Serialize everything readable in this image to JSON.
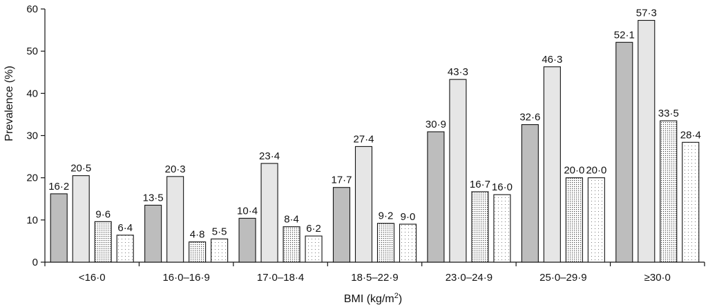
{
  "chart_data": {
    "type": "bar",
    "title": "",
    "xlabel": "BMI (kg/m",
    "xlabel_sup": "2",
    "xlabel_close": ")",
    "ylabel": "Prevalence (%)",
    "ylim": [
      0,
      60
    ],
    "yticks": [
      "0",
      "10",
      "20",
      "30",
      "40",
      "50",
      "60"
    ],
    "grid": false,
    "legend": "none",
    "categories": [
      "<16·0",
      "16·0–16·9",
      "17·0–18·4",
      "18·5–22·9",
      "23·0–24·9",
      "25·0–29·9",
      "≥30·0"
    ],
    "series": [
      {
        "values": [
          16.2,
          13.5,
          10.4,
          17.7,
          30.9,
          32.6,
          52.1
        ],
        "labels": [
          "16·2",
          "13·5",
          "10·4",
          "17·7",
          "30·9",
          "32·6",
          "52·1"
        ],
        "fill": "#bdbdbd",
        "pattern": "solid"
      },
      {
        "values": [
          20.5,
          20.3,
          23.4,
          27.4,
          43.3,
          46.3,
          57.3
        ],
        "labels": [
          "20·5",
          "20·3",
          "23·4",
          "27·4",
          "43·3",
          "46·3",
          "57·3"
        ],
        "fill": "#e6e6e6",
        "pattern": "solid"
      },
      {
        "values": [
          9.6,
          4.8,
          8.4,
          9.2,
          16.7,
          20.0,
          33.5
        ],
        "labels": [
          "9·6",
          "4·8",
          "8·4",
          "9·2",
          "16·7",
          "20·0",
          "33·5"
        ],
        "fill": "#ffffff",
        "pattern": "dense-dots"
      },
      {
        "values": [
          6.4,
          5.5,
          6.2,
          9.0,
          16.0,
          20.0,
          28.4
        ],
        "labels": [
          "6·4",
          "5·5",
          "6·2",
          "9·0",
          "16·0",
          "20·0",
          "28·4"
        ],
        "fill": "#ffffff",
        "pattern": "sparse-dots"
      }
    ]
  }
}
